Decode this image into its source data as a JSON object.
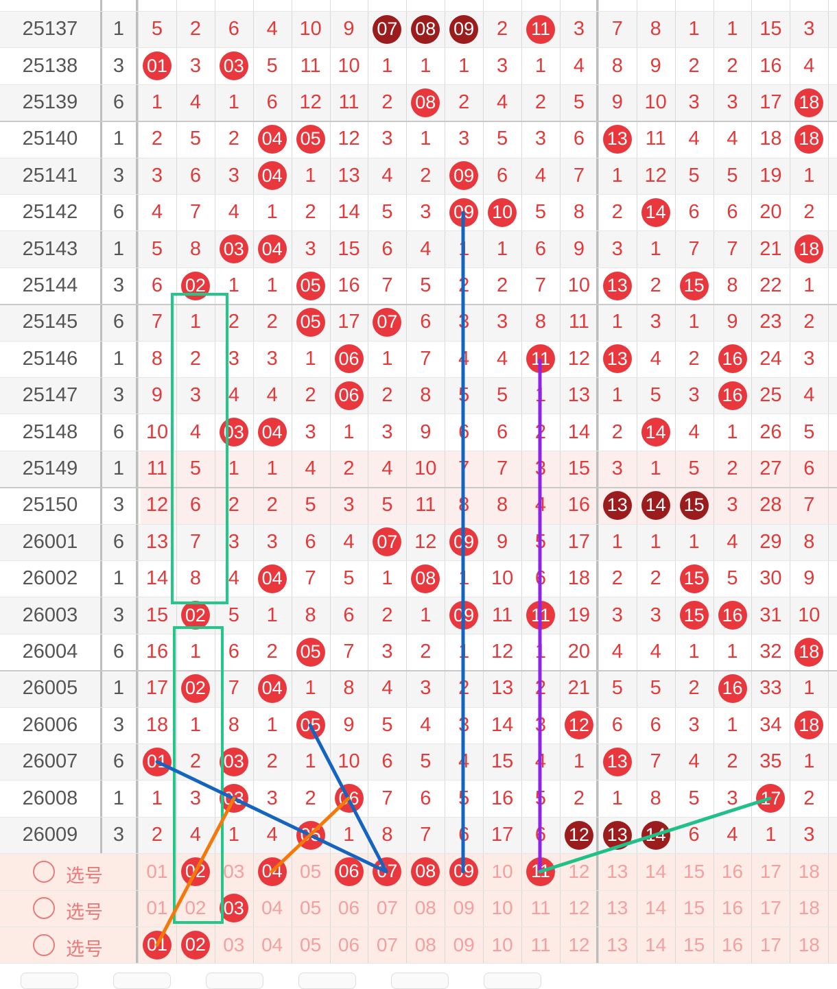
{
  "columns": [
    "01",
    "02",
    "03",
    "04",
    "05",
    "06",
    "07",
    "08",
    "09",
    "10",
    "11",
    "12",
    "13",
    "14",
    "15",
    "16",
    "17",
    "18"
  ],
  "rows": [
    {
      "issue": "25137",
      "sum": "1",
      "vals": [
        "5",
        "2",
        "6",
        "4",
        "10",
        "9",
        "07",
        "08",
        "09",
        "2",
        "11",
        "3",
        "7",
        "8",
        "1",
        "1",
        "15",
        "3"
      ],
      "balls": {
        "07": "dark",
        "08": "dark",
        "09": "dark",
        "11": "red"
      }
    },
    {
      "issue": "25138",
      "sum": "3",
      "vals": [
        "01",
        "3",
        "03",
        "5",
        "11",
        "10",
        "1",
        "1",
        "1",
        "3",
        "1",
        "4",
        "8",
        "9",
        "2",
        "2",
        "16",
        "4"
      ],
      "balls": {
        "01": "red",
        "03": "red"
      }
    },
    {
      "issue": "25139",
      "sum": "6",
      "vals": [
        "1",
        "4",
        "1",
        "6",
        "12",
        "11",
        "2",
        "08",
        "2",
        "4",
        "2",
        "5",
        "9",
        "10",
        "3",
        "3",
        "17",
        "18"
      ],
      "balls": {
        "08": "red",
        "18": "red"
      }
    },
    {
      "issue": "25140",
      "sum": "1",
      "vals": [
        "2",
        "5",
        "2",
        "04",
        "05",
        "12",
        "3",
        "1",
        "3",
        "5",
        "3",
        "6",
        "13",
        "11",
        "4",
        "4",
        "18",
        "18"
      ],
      "balls": {
        "04": "red",
        "05": "red",
        "13": "red",
        "18": "red"
      }
    },
    {
      "issue": "25141",
      "sum": "3",
      "vals": [
        "3",
        "6",
        "3",
        "04",
        "1",
        "13",
        "4",
        "2",
        "09",
        "6",
        "4",
        "7",
        "1",
        "12",
        "5",
        "5",
        "19",
        "1"
      ],
      "balls": {
        "04": "red",
        "09": "red"
      }
    },
    {
      "issue": "25142",
      "sum": "6",
      "vals": [
        "4",
        "7",
        "4",
        "1",
        "2",
        "14",
        "5",
        "3",
        "09",
        "10",
        "5",
        "8",
        "2",
        "14",
        "6",
        "6",
        "20",
        "2"
      ],
      "balls": {
        "09": "red",
        "10": "red",
        "14": "red"
      }
    },
    {
      "issue": "25143",
      "sum": "1",
      "vals": [
        "5",
        "8",
        "03",
        "04",
        "3",
        "15",
        "6",
        "4",
        "1",
        "1",
        "6",
        "9",
        "3",
        "1",
        "7",
        "7",
        "21",
        "18"
      ],
      "balls": {
        "03": "red",
        "04": "red",
        "18": "red"
      }
    },
    {
      "issue": "25144",
      "sum": "3",
      "vals": [
        "6",
        "02",
        "1",
        "1",
        "05",
        "16",
        "7",
        "5",
        "2",
        "2",
        "7",
        "10",
        "13",
        "2",
        "15",
        "8",
        "22",
        "1"
      ],
      "balls": {
        "02": "red",
        "05": "red",
        "13": "red",
        "15": "red"
      }
    },
    {
      "issue": "25145",
      "sum": "6",
      "vals": [
        "7",
        "1",
        "2",
        "2",
        "05",
        "17",
        "07",
        "6",
        "3",
        "3",
        "8",
        "11",
        "1",
        "3",
        "1",
        "9",
        "23",
        "2"
      ],
      "balls": {
        "05": "red",
        "07": "red"
      }
    },
    {
      "issue": "25146",
      "sum": "1",
      "vals": [
        "8",
        "2",
        "3",
        "3",
        "1",
        "06",
        "1",
        "7",
        "4",
        "4",
        "11",
        "12",
        "13",
        "4",
        "2",
        "16",
        "24",
        "3"
      ],
      "balls": {
        "06": "red",
        "11": "red",
        "13": "red",
        "16": "red"
      }
    },
    {
      "issue": "25147",
      "sum": "3",
      "vals": [
        "9",
        "3",
        "4",
        "4",
        "2",
        "06",
        "2",
        "8",
        "5",
        "5",
        "1",
        "13",
        "1",
        "5",
        "3",
        "16",
        "25",
        "4"
      ],
      "balls": {
        "06": "red",
        "16": "red"
      }
    },
    {
      "issue": "25148",
      "sum": "6",
      "vals": [
        "10",
        "4",
        "03",
        "04",
        "3",
        "1",
        "3",
        "9",
        "6",
        "6",
        "2",
        "14",
        "2",
        "14",
        "4",
        "1",
        "26",
        "5"
      ],
      "balls": {
        "03": "red",
        "04": "red",
        "14": "red"
      }
    },
    {
      "issue": "25149",
      "sum": "1",
      "vals": [
        "11",
        "5",
        "1",
        "1",
        "4",
        "2",
        "4",
        "10",
        "7",
        "7",
        "3",
        "15",
        "3",
        "1",
        "5",
        "2",
        "27",
        "6"
      ],
      "balls": {}
    },
    {
      "issue": "25150",
      "sum": "3",
      "vals": [
        "12",
        "6",
        "2",
        "2",
        "5",
        "3",
        "5",
        "11",
        "8",
        "8",
        "4",
        "16",
        "13",
        "14",
        "15",
        "3",
        "28",
        "7"
      ],
      "balls": {
        "13": "dark",
        "14": "dark",
        "15": "dark"
      }
    },
    {
      "issue": "26001",
      "sum": "6",
      "vals": [
        "13",
        "7",
        "3",
        "3",
        "6",
        "4",
        "07",
        "12",
        "09",
        "9",
        "5",
        "17",
        "1",
        "1",
        "1",
        "4",
        "29",
        "8"
      ],
      "balls": {
        "07": "red",
        "09": "red"
      }
    },
    {
      "issue": "26002",
      "sum": "1",
      "vals": [
        "14",
        "8",
        "4",
        "04",
        "7",
        "5",
        "1",
        "08",
        "1",
        "10",
        "6",
        "18",
        "2",
        "2",
        "15",
        "5",
        "30",
        "9"
      ],
      "balls": {
        "04": "red",
        "08": "red",
        "15": "red"
      }
    },
    {
      "issue": "26003",
      "sum": "3",
      "vals": [
        "15",
        "02",
        "5",
        "1",
        "8",
        "6",
        "2",
        "1",
        "09",
        "11",
        "11",
        "19",
        "3",
        "3",
        "15",
        "16",
        "31",
        "10"
      ],
      "balls": {
        "02": "red",
        "09": "red",
        "11": "red",
        "15": "red",
        "16": "red"
      }
    },
    {
      "issue": "26004",
      "sum": "6",
      "vals": [
        "16",
        "1",
        "6",
        "2",
        "05",
        "7",
        "3",
        "2",
        "1",
        "12",
        "1",
        "20",
        "4",
        "4",
        "1",
        "1",
        "32",
        "18"
      ],
      "balls": {
        "05": "red",
        "18": "red"
      }
    },
    {
      "issue": "26005",
      "sum": "1",
      "vals": [
        "17",
        "02",
        "7",
        "04",
        "1",
        "8",
        "4",
        "3",
        "2",
        "13",
        "2",
        "21",
        "5",
        "5",
        "2",
        "16",
        "33",
        "1"
      ],
      "balls": {
        "02": "red",
        "04": "red",
        "16": "red"
      }
    },
    {
      "issue": "26006",
      "sum": "3",
      "vals": [
        "18",
        "1",
        "8",
        "1",
        "05",
        "9",
        "5",
        "4",
        "3",
        "14",
        "3",
        "12",
        "6",
        "6",
        "3",
        "1",
        "34",
        "18"
      ],
      "balls": {
        "05": "red",
        "12": "red",
        "18": "red"
      }
    },
    {
      "issue": "26007",
      "sum": "6",
      "vals": [
        "01",
        "2",
        "03",
        "2",
        "1",
        "10",
        "6",
        "5",
        "4",
        "15",
        "4",
        "1",
        "13",
        "7",
        "4",
        "2",
        "35",
        "1"
      ],
      "balls": {
        "01": "red",
        "03": "red",
        "13": "red"
      }
    },
    {
      "issue": "26008",
      "sum": "1",
      "vals": [
        "1",
        "3",
        "03",
        "3",
        "2",
        "06",
        "7",
        "6",
        "5",
        "16",
        "5",
        "2",
        "1",
        "8",
        "5",
        "3",
        "17",
        "2"
      ],
      "balls": {
        "03": "red",
        "06": "red",
        "17": "red"
      }
    },
    {
      "issue": "26009",
      "sum": "3",
      "vals": [
        "2",
        "4",
        "1",
        "4",
        "05",
        "1",
        "8",
        "7",
        "6",
        "17",
        "6",
        "12",
        "13",
        "14",
        "6",
        "4",
        "1",
        "3"
      ],
      "balls": {
        "05": "red",
        "12": "dark",
        "13": "dark",
        "14": "dark"
      }
    }
  ],
  "select_rows": [
    {
      "label": "选号",
      "selected": [
        "02",
        "04",
        "06",
        "07",
        "08",
        "09",
        "11"
      ]
    },
    {
      "label": "选号",
      "selected": [
        "03"
      ]
    },
    {
      "label": "选号",
      "selected": [
        "01",
        "02"
      ]
    }
  ],
  "colors": {
    "red": "#e8383d",
    "dark": "#9b1c1c",
    "blue": "#1565c0",
    "purple": "#8e24e8",
    "green": "#20c088",
    "orange": "#f5780a",
    "box_green": "#22c78a"
  }
}
